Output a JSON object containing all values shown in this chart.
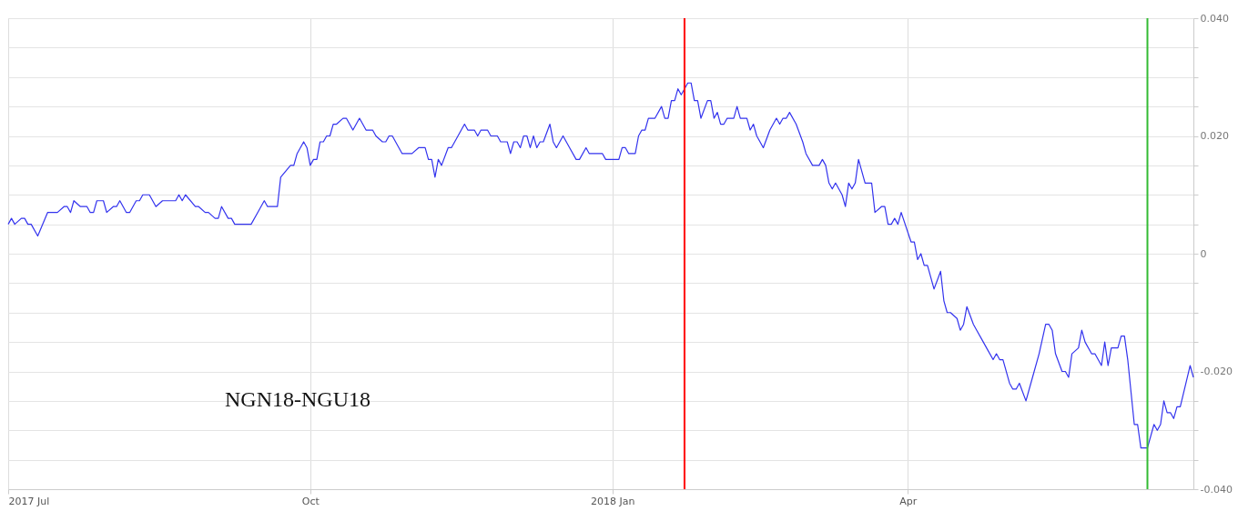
{
  "chart_data": {
    "type": "line",
    "x": [
      "2017-07-01",
      "2017-07-02",
      "2017-07-03",
      "2017-07-05",
      "2017-07-06",
      "2017-07-07",
      "2017-07-08",
      "2017-07-10",
      "2017-07-13",
      "2017-07-16",
      "2017-07-18",
      "2017-07-19",
      "2017-07-20",
      "2017-07-21",
      "2017-07-23",
      "2017-07-25",
      "2017-07-26",
      "2017-07-27",
      "2017-07-28",
      "2017-07-30",
      "2017-07-31",
      "2017-08-02",
      "2017-08-03",
      "2017-08-04",
      "2017-08-06",
      "2017-08-07",
      "2017-08-08",
      "2017-08-09",
      "2017-08-10",
      "2017-08-11",
      "2017-08-13",
      "2017-08-15",
      "2017-08-17",
      "2017-08-21",
      "2017-08-22",
      "2017-08-23",
      "2017-08-24",
      "2017-08-27",
      "2017-08-28",
      "2017-08-30",
      "2017-08-31",
      "2017-09-02",
      "2017-09-03",
      "2017-09-04",
      "2017-09-06",
      "2017-09-07",
      "2017-09-08",
      "2017-09-13",
      "2017-09-15",
      "2017-09-17",
      "2017-09-18",
      "2017-09-21",
      "2017-09-22",
      "2017-09-25",
      "2017-09-26",
      "2017-09-27",
      "2017-09-29",
      "2017-09-30",
      "2017-10-01",
      "2017-10-02",
      "2017-10-03",
      "2017-10-04",
      "2017-10-05",
      "2017-10-06",
      "2017-10-07",
      "2017-10-08",
      "2017-10-09",
      "2017-10-11",
      "2017-10-12",
      "2017-10-14",
      "2017-10-16",
      "2017-10-18",
      "2017-10-20",
      "2017-10-21",
      "2017-10-23",
      "2017-10-24",
      "2017-10-25",
      "2017-10-26",
      "2017-10-29",
      "2017-11-01",
      "2017-11-03",
      "2017-11-05",
      "2017-11-06",
      "2017-11-07",
      "2017-11-08",
      "2017-11-09",
      "2017-11-10",
      "2017-11-12",
      "2017-11-13",
      "2017-11-15",
      "2017-11-17",
      "2017-11-18",
      "2017-11-20",
      "2017-11-21",
      "2017-11-22",
      "2017-11-24",
      "2017-11-25",
      "2017-11-27",
      "2017-11-28",
      "2017-11-30",
      "2017-12-01",
      "2017-12-02",
      "2017-12-03",
      "2017-12-04",
      "2017-12-05",
      "2017-12-06",
      "2017-12-07",
      "2017-12-08",
      "2017-12-09",
      "2017-12-10",
      "2017-12-11",
      "2017-12-13",
      "2017-12-14",
      "2017-12-15",
      "2017-12-17",
      "2017-12-19",
      "2017-12-21",
      "2017-12-22",
      "2017-12-24",
      "2017-12-25",
      "2017-12-29",
      "2017-12-30",
      "2018-01-03",
      "2018-01-04",
      "2018-01-05",
      "2018-01-06",
      "2018-01-08",
      "2018-01-09",
      "2018-01-10",
      "2018-01-11",
      "2018-01-12",
      "2018-01-14",
      "2018-01-16",
      "2018-01-17",
      "2018-01-18",
      "2018-01-19",
      "2018-01-20",
      "2018-01-21",
      "2018-01-22",
      "2018-01-24",
      "2018-01-25",
      "2018-01-26",
      "2018-01-27",
      "2018-01-28",
      "2018-01-30",
      "2018-01-31",
      "2018-02-01",
      "2018-02-02",
      "2018-02-03",
      "2018-02-04",
      "2018-02-05",
      "2018-02-07",
      "2018-02-08",
      "2018-02-09",
      "2018-02-11",
      "2018-02-12",
      "2018-02-13",
      "2018-02-14",
      "2018-02-16",
      "2018-02-18",
      "2018-02-20",
      "2018-02-21",
      "2018-02-22",
      "2018-02-23",
      "2018-02-24",
      "2018-02-26",
      "2018-02-28",
      "2018-03-01",
      "2018-03-03",
      "2018-03-05",
      "2018-03-06",
      "2018-03-07",
      "2018-03-08",
      "2018-03-09",
      "2018-03-10",
      "2018-03-12",
      "2018-03-13",
      "2018-03-14",
      "2018-03-15",
      "2018-03-16",
      "2018-03-17",
      "2018-03-19",
      "2018-03-21",
      "2018-03-22",
      "2018-03-24",
      "2018-03-25",
      "2018-03-26",
      "2018-03-27",
      "2018-03-28",
      "2018-03-29",
      "2018-03-30",
      "2018-04-02",
      "2018-04-03",
      "2018-04-04",
      "2018-04-05",
      "2018-04-06",
      "2018-04-07",
      "2018-04-09",
      "2018-04-11",
      "2018-04-12",
      "2018-04-13",
      "2018-04-14",
      "2018-04-16",
      "2018-04-17",
      "2018-04-18",
      "2018-04-19",
      "2018-04-21",
      "2018-04-22",
      "2018-04-24",
      "2018-04-25",
      "2018-04-27",
      "2018-04-28",
      "2018-04-29",
      "2018-04-30",
      "2018-05-02",
      "2018-05-03",
      "2018-05-04",
      "2018-05-05",
      "2018-05-07",
      "2018-05-09",
      "2018-05-11",
      "2018-05-13",
      "2018-05-14",
      "2018-05-15",
      "2018-05-16",
      "2018-05-18",
      "2018-05-19",
      "2018-05-20",
      "2018-05-21",
      "2018-05-23",
      "2018-05-24",
      "2018-05-25",
      "2018-05-27",
      "2018-05-28",
      "2018-05-30",
      "2018-05-31",
      "2018-06-01",
      "2018-06-02",
      "2018-06-04",
      "2018-06-05",
      "2018-06-06",
      "2018-06-07",
      "2018-06-09",
      "2018-06-10",
      "2018-06-11",
      "2018-06-13",
      "2018-06-15",
      "2018-06-16",
      "2018-06-17",
      "2018-06-18",
      "2018-06-19",
      "2018-06-20",
      "2018-06-21",
      "2018-06-22",
      "2018-06-23",
      "2018-06-26",
      "2018-06-27"
    ],
    "series": [
      {
        "color": "#3333ee",
        "values": [
          0.005,
          0.006,
          0.005,
          0.006,
          0.006,
          0.005,
          0.005,
          0.003,
          0.007,
          0.007,
          0.008,
          0.008,
          0.007,
          0.009,
          0.008,
          0.008,
          0.007,
          0.007,
          0.009,
          0.009,
          0.007,
          0.008,
          0.008,
          0.009,
          0.007,
          0.007,
          0.008,
          0.009,
          0.009,
          0.01,
          0.01,
          0.008,
          0.009,
          0.009,
          0.01,
          0.009,
          0.01,
          0.008,
          0.008,
          0.007,
          0.007,
          0.006,
          0.006,
          0.008,
          0.006,
          0.006,
          0.005,
          0.005,
          0.007,
          0.009,
          0.008,
          0.008,
          0.013,
          0.015,
          0.015,
          0.017,
          0.019,
          0.018,
          0.015,
          0.016,
          0.016,
          0.019,
          0.019,
          0.02,
          0.02,
          0.022,
          0.022,
          0.023,
          0.023,
          0.021,
          0.023,
          0.021,
          0.021,
          0.02,
          0.019,
          0.019,
          0.02,
          0.02,
          0.017,
          0.017,
          0.018,
          0.018,
          0.016,
          0.016,
          0.013,
          0.016,
          0.015,
          0.018,
          0.018,
          0.02,
          0.022,
          0.021,
          0.021,
          0.02,
          0.021,
          0.021,
          0.02,
          0.02,
          0.019,
          0.019,
          0.017,
          0.019,
          0.019,
          0.018,
          0.02,
          0.02,
          0.018,
          0.02,
          0.018,
          0.019,
          0.019,
          0.022,
          0.019,
          0.018,
          0.02,
          0.018,
          0.016,
          0.016,
          0.018,
          0.017,
          0.017,
          0.016,
          0.016,
          0.018,
          0.018,
          0.017,
          0.017,
          0.02,
          0.021,
          0.021,
          0.023,
          0.023,
          0.025,
          0.023,
          0.023,
          0.026,
          0.026,
          0.028,
          0.027,
          0.029,
          0.029,
          0.026,
          0.026,
          0.023,
          0.026,
          0.026,
          0.023,
          0.024,
          0.022,
          0.022,
          0.023,
          0.023,
          0.025,
          0.023,
          0.023,
          0.021,
          0.022,
          0.02,
          0.018,
          0.021,
          0.023,
          0.022,
          0.023,
          0.023,
          0.024,
          0.022,
          0.019,
          0.017,
          0.015,
          0.015,
          0.016,
          0.015,
          0.012,
          0.011,
          0.012,
          0.01,
          0.008,
          0.012,
          0.011,
          0.012,
          0.016,
          0.012,
          0.012,
          0.007,
          0.008,
          0.008,
          0.005,
          0.005,
          0.006,
          0.005,
          0.007,
          0.002,
          0.002,
          -0.001,
          0.0,
          -0.002,
          -0.002,
          -0.006,
          -0.003,
          -0.008,
          -0.01,
          -0.01,
          -0.011,
          -0.013,
          -0.012,
          -0.009,
          -0.012,
          -0.013,
          -0.015,
          -0.016,
          -0.018,
          -0.017,
          -0.018,
          -0.018,
          -0.022,
          -0.023,
          -0.023,
          -0.022,
          -0.025,
          -0.021,
          -0.017,
          -0.012,
          -0.012,
          -0.013,
          -0.017,
          -0.02,
          -0.02,
          -0.021,
          -0.017,
          -0.016,
          -0.013,
          -0.015,
          -0.017,
          -0.017,
          -0.019,
          -0.015,
          -0.019,
          -0.016,
          -0.016,
          -0.014,
          -0.014,
          -0.018,
          -0.029,
          -0.029,
          -0.033,
          -0.033,
          -0.029,
          -0.03,
          -0.029,
          -0.025,
          -0.027,
          -0.027,
          -0.028,
          -0.026,
          -0.026,
          -0.019,
          -0.021
        ]
      }
    ],
    "xlim": [
      "2017-07-01",
      "2018-06-27"
    ],
    "xticks": [
      {
        "value": "2017-07-01",
        "label": "2017 Jul"
      },
      {
        "value": "2017-10-01",
        "label": "Oct"
      },
      {
        "value": "2018-01-01",
        "label": "2018 Jan"
      },
      {
        "value": "2018-04-01",
        "label": "Apr"
      }
    ],
    "ylim": [
      -0.04,
      0.04
    ],
    "yticks": [
      {
        "value": -0.04,
        "label": "-0.040"
      },
      {
        "value": -0.035,
        "label": null
      },
      {
        "value": -0.03,
        "label": null
      },
      {
        "value": -0.025,
        "label": null
      },
      {
        "value": -0.02,
        "label": "-0.020"
      },
      {
        "value": -0.015,
        "label": null
      },
      {
        "value": -0.01,
        "label": null
      },
      {
        "value": -0.005,
        "label": null
      },
      0,
      {
        "value": 0.005,
        "label": null
      },
      {
        "value": 0.01,
        "label": null
      },
      {
        "value": 0.015,
        "label": null
      },
      {
        "value": 0.02,
        "label": "0.020"
      },
      {
        "value": 0.025,
        "label": null
      },
      {
        "value": 0.03,
        "label": null
      },
      {
        "value": 0.035,
        "label": null
      },
      {
        "value": 0.04,
        "label": "0.040"
      }
    ],
    "ref_lines": [
      {
        "axis": "x",
        "value": "2018-01-23",
        "color": "#ff0000"
      },
      {
        "axis": "x",
        "value": "2018-06-13",
        "color": "#33bb33"
      }
    ],
    "annotations": [
      "NGN18-NGU18"
    ],
    "grid": true,
    "marker": "none",
    "line_style": "solid"
  }
}
